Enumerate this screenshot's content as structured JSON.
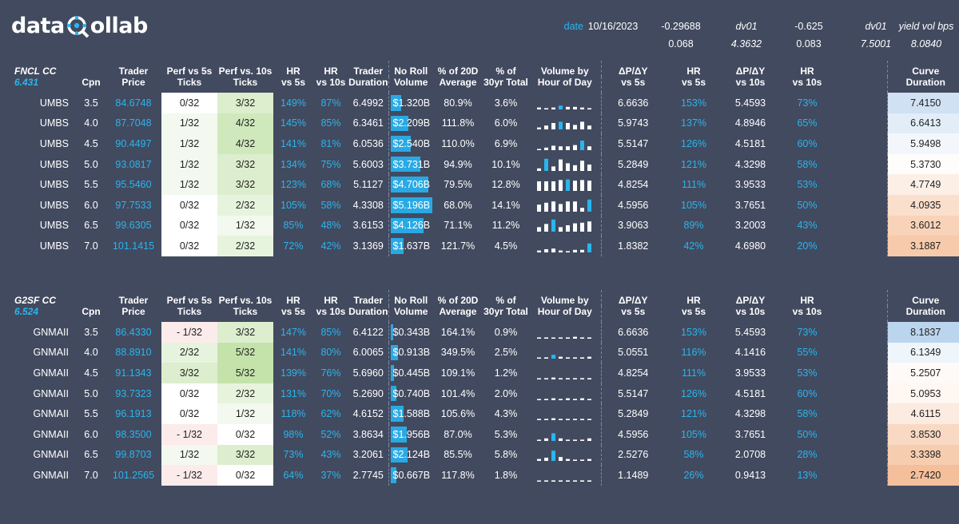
{
  "brand": {
    "name_left": "data",
    "name_right": "ollab"
  },
  "header": {
    "date_label": "date",
    "date_value": "10/16/2023",
    "top": [
      {
        "label": "-0.29688",
        "italic": false
      },
      {
        "label": "dv01",
        "italic": true
      },
      {
        "label": "-0.625",
        "italic": false
      },
      {
        "label": "dv01",
        "italic": true
      },
      {
        "label": "yield vol bps",
        "italic": true
      }
    ],
    "bottom": [
      {
        "label": "0.068",
        "italic": false
      },
      {
        "label": "4.3632",
        "italic": true
      },
      {
        "label": "0.083",
        "italic": false
      },
      {
        "label": "7.5001",
        "italic": true
      },
      {
        "label": "8.0840",
        "italic": true
      }
    ]
  },
  "columns": {
    "cpn": "Cpn",
    "trader_price": [
      "Trader",
      "Price"
    ],
    "perf5": [
      "Perf vs 5s",
      "Ticks"
    ],
    "perf10": [
      "Perf vs. 10s",
      "Ticks"
    ],
    "hr5": [
      "HR",
      "vs 5s"
    ],
    "hr10": [
      "HR",
      "vs 10s"
    ],
    "dur": [
      "Trader",
      "Duration"
    ],
    "vol": [
      "No Roll",
      "Volume"
    ],
    "avg20": [
      "% of 20D",
      "Average"
    ],
    "tot30": [
      "% of",
      "30yr Total"
    ],
    "hour": [
      "Volume by",
      "Hour of Day"
    ],
    "dpdy5": [
      "ΔP/ΔY",
      "vs 5s"
    ],
    "hr5b": [
      "HR",
      "vs 5s"
    ],
    "dpdy10": [
      "ΔP/ΔY",
      "vs 10s"
    ],
    "hr10b": [
      "HR",
      "vs 10s"
    ],
    "curve": [
      "Curve",
      "Duration"
    ]
  },
  "colors": {
    "accent": "#29b5ee",
    "bg": "#424a5f",
    "bar": "#29a9e4",
    "curve_high": "#bcd5ee",
    "curve_low": "#f4be98",
    "perf_high": "#c4e3ab"
  },
  "sections": [
    {
      "title": "FNCL CC",
      "sub": "6.431",
      "rows": [
        {
          "name": "UMBS",
          "cpn": "3.5",
          "price": "84.6748",
          "p5": "0/32",
          "p10": "3/32",
          "hr5": "149%",
          "hr10": "87%",
          "dur": "6.4992",
          "vol": "$1.320B",
          "volv": 1.32,
          "avg": "80.9%",
          "tot": "3.6%",
          "d5": "6.6636",
          "h5": "153%",
          "d10": "5.4593",
          "h10": "73%",
          "curve": "7.4150",
          "cv": 7.415,
          "p5v": 0,
          "p10v": 3,
          "spark": [
            0.15,
            0.1,
            0.15,
            0.3,
            0.2,
            0.2,
            0.15,
            0.1
          ]
        },
        {
          "name": "UMBS",
          "cpn": "4.0",
          "price": "87.7048",
          "p5": "1/32",
          "p10": "4/32",
          "hr5": "145%",
          "hr10": "85%",
          "dur": "6.3461",
          "vol": "$2.209B",
          "volv": 2.209,
          "avg": "111.8%",
          "tot": "6.0%",
          "d5": "5.9743",
          "h5": "137%",
          "d10": "4.8946",
          "h10": "65%",
          "curve": "6.6413",
          "cv": 6.6413,
          "p5v": 1,
          "p10v": 4,
          "spark": [
            0.15,
            0.3,
            0.5,
            0.6,
            0.5,
            0.35,
            0.6,
            0.3
          ]
        },
        {
          "name": "UMBS",
          "cpn": "4.5",
          "price": "90.4497",
          "p5": "1/32",
          "p10": "4/32",
          "hr5": "141%",
          "hr10": "81%",
          "dur": "6.0536",
          "vol": "$2.540B",
          "volv": 2.54,
          "avg": "110.0%",
          "tot": "6.9%",
          "d5": "5.5147",
          "h5": "126%",
          "d10": "4.5181",
          "h10": "60%",
          "curve": "5.9498",
          "cv": 5.9498,
          "p5v": 1,
          "p10v": 4,
          "spark": [
            0.1,
            0.2,
            0.35,
            0.3,
            0.3,
            0.4,
            0.75,
            0.3
          ]
        },
        {
          "name": "UMBS",
          "cpn": "5.0",
          "price": "93.0817",
          "p5": "1/32",
          "p10": "3/32",
          "hr5": "134%",
          "hr10": "75%",
          "dur": "5.6003",
          "vol": "$3.731B",
          "volv": 3.731,
          "avg": "94.9%",
          "tot": "10.1%",
          "d5": "5.2849",
          "h5": "121%",
          "d10": "4.3298",
          "h10": "58%",
          "curve": "5.3730",
          "cv": 5.373,
          "p5v": 1,
          "p10v": 3,
          "spark": [
            0.2,
            0.95,
            0.35,
            0.9,
            0.6,
            0.45,
            0.8,
            0.5
          ]
        },
        {
          "name": "UMBS",
          "cpn": "5.5",
          "price": "95.5460",
          "p5": "1/32",
          "p10": "3/32",
          "hr5": "123%",
          "hr10": "68%",
          "dur": "5.1127",
          "vol": "$4.706B",
          "volv": 4.706,
          "avg": "79.5%",
          "tot": "12.8%",
          "d5": "4.8254",
          "h5": "111%",
          "d10": "3.9533",
          "h10": "53%",
          "curve": "4.7749",
          "cv": 4.7749,
          "p5v": 1,
          "p10v": 3,
          "spark": [
            0.75,
            0.75,
            0.75,
            0.85,
            0.9,
            0.8,
            0.85,
            0.8
          ]
        },
        {
          "name": "UMBS",
          "cpn": "6.0",
          "price": "97.7533",
          "p5": "0/32",
          "p10": "2/32",
          "hr5": "105%",
          "hr10": "58%",
          "dur": "4.3308",
          "vol": "$5.196B",
          "volv": 5.196,
          "avg": "68.0%",
          "tot": "14.1%",
          "d5": "4.5956",
          "h5": "105%",
          "d10": "3.7651",
          "h10": "50%",
          "curve": "4.0935",
          "cv": 4.0935,
          "p5v": 0,
          "p10v": 2,
          "spark": [
            0.55,
            0.7,
            0.8,
            0.6,
            0.8,
            0.8,
            0.3,
            0.95
          ]
        },
        {
          "name": "UMBS",
          "cpn": "6.5",
          "price": "99.6305",
          "p5": "0/32",
          "p10": "1/32",
          "hr5": "85%",
          "hr10": "48%",
          "dur": "3.6153",
          "vol": "$4.126B",
          "volv": 4.126,
          "avg": "71.1%",
          "tot": "11.2%",
          "d5": "3.9063",
          "h5": "89%",
          "d10": "3.2003",
          "h10": "43%",
          "curve": "3.6012",
          "cv": 3.6012,
          "p5v": 0,
          "p10v": 1,
          "spark": [
            0.35,
            0.6,
            0.95,
            0.35,
            0.5,
            0.65,
            0.7,
            0.8
          ]
        },
        {
          "name": "UMBS",
          "cpn": "7.0",
          "price": "101.1415",
          "p5": "0/32",
          "p10": "2/32",
          "hr5": "72%",
          "hr10": "42%",
          "dur": "3.1369",
          "vol": "$1.637B",
          "volv": 1.637,
          "avg": "121.7%",
          "tot": "4.5%",
          "d5": "1.8382",
          "h5": "42%",
          "d10": "4.6980",
          "h10": "20%",
          "curve": "3.1887",
          "cv": 3.1887,
          "p5v": 0,
          "p10v": 2,
          "spark": [
            0.15,
            0.25,
            0.3,
            0.15,
            0.1,
            0.2,
            0.2,
            0.7
          ]
        }
      ]
    },
    {
      "title": "G2SF CC",
      "sub": "6.524",
      "rows": [
        {
          "name": "GNMAII",
          "cpn": "3.5",
          "price": "86.4330",
          "p5": "- 1/32",
          "p10": "3/32",
          "hr5": "147%",
          "hr10": "85%",
          "dur": "6.4122",
          "vol": "$0.343B",
          "volv": 0.343,
          "avg": "164.1%",
          "tot": "0.9%",
          "d5": "6.6636",
          "h5": "153%",
          "d10": "5.4593",
          "h10": "73%",
          "curve": "8.1837",
          "cv": 8.1837,
          "p5v": -1,
          "p10v": 3,
          "spark": [
            0.1,
            0.1,
            0,
            0.1,
            0.1,
            0.15,
            0.1,
            0.1
          ]
        },
        {
          "name": "GNMAII",
          "cpn": "4.0",
          "price": "88.8910",
          "p5": "2/32",
          "p10": "5/32",
          "hr5": "141%",
          "hr10": "80%",
          "dur": "6.0065",
          "vol": "$0.913B",
          "volv": 0.913,
          "avg": "349.5%",
          "tot": "2.5%",
          "d5": "5.0551",
          "h5": "116%",
          "d10": "4.1416",
          "h10": "55%",
          "curve": "6.1349",
          "cv": 6.1349,
          "p5v": 2,
          "p10v": 5,
          "spark": [
            0.05,
            0.1,
            0.3,
            0.15,
            0.1,
            0.1,
            0.1,
            0.15
          ]
        },
        {
          "name": "GNMAII",
          "cpn": "4.5",
          "price": "91.1343",
          "p5": "3/32",
          "p10": "5/32",
          "hr5": "139%",
          "hr10": "76%",
          "dur": "5.6960",
          "vol": "$0.445B",
          "volv": 0.445,
          "avg": "109.1%",
          "tot": "1.2%",
          "d5": "4.8254",
          "h5": "111%",
          "d10": "3.9533",
          "h10": "53%",
          "curve": "5.2507",
          "cv": 5.2507,
          "p5v": 3,
          "p10v": 5,
          "spark": [
            0.05,
            0.1,
            0.15,
            0.1,
            0.1,
            0.1,
            0.1,
            0.1
          ]
        },
        {
          "name": "GNMAII",
          "cpn": "5.0",
          "price": "93.7323",
          "p5": "0/32",
          "p10": "2/32",
          "hr5": "131%",
          "hr10": "70%",
          "dur": "5.2690",
          "vol": "$0.740B",
          "volv": 0.74,
          "avg": "101.4%",
          "tot": "2.0%",
          "d5": "5.5147",
          "h5": "126%",
          "d10": "4.5181",
          "h10": "60%",
          "curve": "5.0953",
          "cv": 5.0953,
          "p5v": 0,
          "p10v": 2,
          "spark": [
            0.05,
            0.1,
            0.15,
            0.1,
            0.15,
            0.1,
            0.15,
            0.1
          ]
        },
        {
          "name": "GNMAII",
          "cpn": "5.5",
          "price": "96.1913",
          "p5": "0/32",
          "p10": "1/32",
          "hr5": "118%",
          "hr10": "62%",
          "dur": "4.6152",
          "vol": "$1.588B",
          "volv": 1.588,
          "avg": "105.6%",
          "tot": "4.3%",
          "d5": "5.2849",
          "h5": "121%",
          "d10": "4.3298",
          "h10": "58%",
          "curve": "4.6115",
          "cv": 4.6115,
          "p5v": 0,
          "p10v": 1,
          "spark": [
            0.1,
            0.1,
            0.15,
            0.1,
            0.1,
            0.1,
            0.1,
            0.1
          ]
        },
        {
          "name": "GNMAII",
          "cpn": "6.0",
          "price": "98.3500",
          "p5": "- 1/32",
          "p10": "0/32",
          "hr5": "98%",
          "hr10": "52%",
          "dur": "3.8634",
          "vol": "$1.956B",
          "volv": 1.956,
          "avg": "87.0%",
          "tot": "5.3%",
          "d5": "4.5956",
          "h5": "105%",
          "d10": "3.7651",
          "h10": "50%",
          "curve": "3.8530",
          "cv": 3.853,
          "p5v": -1,
          "p10v": 0,
          "spark": [
            0.1,
            0.2,
            0.6,
            0.2,
            0.1,
            0.1,
            0.1,
            0.2
          ]
        },
        {
          "name": "GNMAII",
          "cpn": "6.5",
          "price": "99.8703",
          "p5": "1/32",
          "p10": "3/32",
          "hr5": "73%",
          "hr10": "43%",
          "dur": "3.2061",
          "vol": "$2.124B",
          "volv": 2.124,
          "avg": "85.5%",
          "tot": "5.8%",
          "d5": "2.5276",
          "h5": "58%",
          "d10": "2.0708",
          "h10": "28%",
          "curve": "3.3398",
          "cv": 3.3398,
          "p5v": 1,
          "p10v": 3,
          "spark": [
            0.15,
            0.25,
            0.8,
            0.3,
            0.15,
            0.1,
            0.1,
            0.15
          ]
        },
        {
          "name": "GNMAII",
          "cpn": "7.0",
          "price": "101.2565",
          "p5": "- 1/32",
          "p10": "0/32",
          "hr5": "64%",
          "hr10": "37%",
          "dur": "2.7745",
          "vol": "$0.667B",
          "volv": 0.667,
          "avg": "117.8%",
          "tot": "1.8%",
          "d5": "1.1489",
          "h5": "26%",
          "d10": "0.9413",
          "h10": "13%",
          "curve": "2.7420",
          "cv": 2.742,
          "p5v": -1,
          "p10v": 0,
          "spark": [
            0.05,
            0.1,
            0.1,
            0.1,
            0.1,
            0.1,
            0.1,
            0.1
          ]
        }
      ]
    }
  ]
}
